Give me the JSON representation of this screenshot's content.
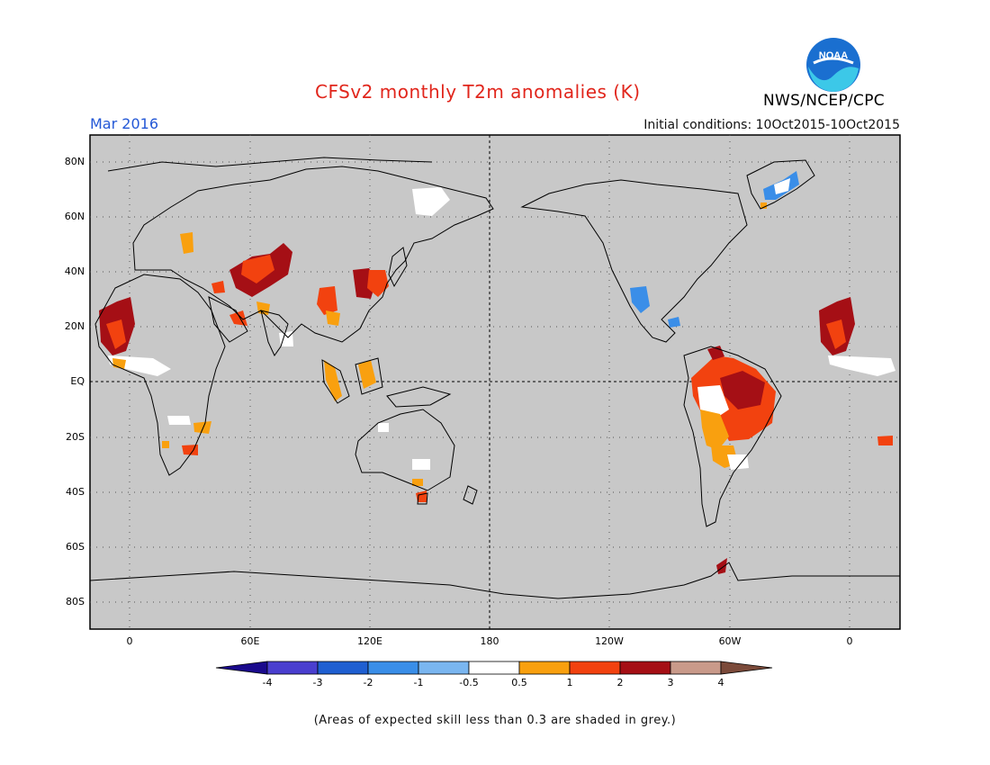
{
  "title": "CFSv2 monthly T2m anomalies (K)",
  "valid_month": "Mar 2016",
  "initial_conditions": "Initial conditions: 10Oct2015-10Oct2015",
  "agency": "NWS/NCEP/CPC",
  "logo_text": "NOAA",
  "footnote": "(Areas of expected skill less than 0.3 are shaded in grey.)",
  "lat_labels": [
    "80N",
    "60N",
    "40N",
    "20N",
    "EQ",
    "20S",
    "40S",
    "60S",
    "80S"
  ],
  "lon_labels": [
    "0",
    "60E",
    "120E",
    "180",
    "120W",
    "60W",
    "0"
  ],
  "colorbar": {
    "labels": [
      "-4",
      "-3",
      "-2",
      "-1",
      "-0.5",
      "0.5",
      "1",
      "2",
      "3",
      "4"
    ],
    "colors": [
      "#1a0a8c",
      "#4a3fcf",
      "#1f5fd1",
      "#3a8ee8",
      "#7ab6f0",
      "#ffffff",
      "#f9a00f",
      "#f2420f",
      "#a50f15",
      "#c99a8a",
      "#7b4a3a"
    ]
  },
  "colors": {
    "land_grey": "#c8c8c8",
    "coast": "#000000"
  }
}
